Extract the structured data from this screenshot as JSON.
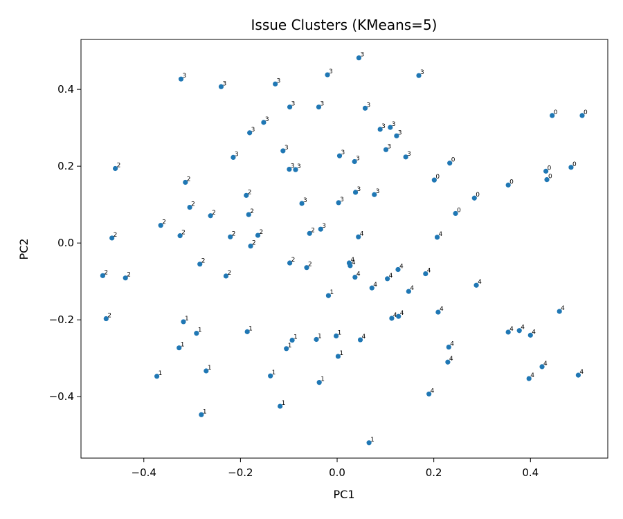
{
  "chart_data": {
    "type": "scatter",
    "title": "Issue Clusters (KMeans=5)",
    "xlabel": "PC1",
    "ylabel": "PC2",
    "xlim": [
      -0.53,
      0.56
    ],
    "ylim": [
      -0.56,
      0.53
    ],
    "grid": false,
    "point_color": "#1f77b4",
    "xticks": [
      -0.4,
      -0.2,
      0.0,
      0.2,
      0.4
    ],
    "xtick_labels": [
      "−0.4",
      "−0.2",
      "0.0",
      "0.2",
      "0.4"
    ],
    "yticks": [
      -0.4,
      -0.2,
      0.0,
      0.2,
      0.4
    ],
    "ytick_labels": [
      "−0.4",
      "−0.2",
      "0.0",
      "0.2",
      "0.4"
    ],
    "points": [
      {
        "x": 0.045,
        "y": 0.482,
        "label": "3"
      },
      {
        "x": -0.323,
        "y": 0.427,
        "label": "3"
      },
      {
        "x": -0.24,
        "y": 0.407,
        "label": "3"
      },
      {
        "x": -0.128,
        "y": 0.414,
        "label": "3"
      },
      {
        "x": -0.02,
        "y": 0.438,
        "label": "3"
      },
      {
        "x": 0.169,
        "y": 0.436,
        "label": "3"
      },
      {
        "x": -0.098,
        "y": 0.354,
        "label": "3"
      },
      {
        "x": -0.038,
        "y": 0.354,
        "label": "3"
      },
      {
        "x": 0.058,
        "y": 0.351,
        "label": "3"
      },
      {
        "x": -0.152,
        "y": 0.314,
        "label": "3"
      },
      {
        "x": -0.181,
        "y": 0.287,
        "label": "3"
      },
      {
        "x": 0.089,
        "y": 0.296,
        "label": "3"
      },
      {
        "x": 0.11,
        "y": 0.301,
        "label": "3"
      },
      {
        "x": 0.123,
        "y": 0.279,
        "label": "3"
      },
      {
        "x": -0.112,
        "y": 0.24,
        "label": "3"
      },
      {
        "x": 0.101,
        "y": 0.243,
        "label": "3"
      },
      {
        "x": 0.142,
        "y": 0.224,
        "label": "3"
      },
      {
        "x": -0.215,
        "y": 0.223,
        "label": "3"
      },
      {
        "x": 0.005,
        "y": 0.227,
        "label": "3"
      },
      {
        "x": 0.036,
        "y": 0.212,
        "label": "3"
      },
      {
        "x": -0.099,
        "y": 0.192,
        "label": "3"
      },
      {
        "x": -0.086,
        "y": 0.191,
        "label": "3"
      },
      {
        "x": 0.038,
        "y": 0.132,
        "label": "3"
      },
      {
        "x": 0.077,
        "y": 0.126,
        "label": "3"
      },
      {
        "x": -0.073,
        "y": 0.103,
        "label": "3"
      },
      {
        "x": 0.003,
        "y": 0.105,
        "label": "3"
      },
      {
        "x": -0.034,
        "y": 0.036,
        "label": "3"
      },
      {
        "x": 0.445,
        "y": 0.332,
        "label": "0"
      },
      {
        "x": 0.507,
        "y": 0.332,
        "label": "0"
      },
      {
        "x": 0.233,
        "y": 0.208,
        "label": "0"
      },
      {
        "x": 0.432,
        "y": 0.187,
        "label": "0"
      },
      {
        "x": 0.484,
        "y": 0.197,
        "label": "0"
      },
      {
        "x": 0.201,
        "y": 0.164,
        "label": "0"
      },
      {
        "x": 0.434,
        "y": 0.165,
        "label": "0"
      },
      {
        "x": 0.354,
        "y": 0.151,
        "label": "0"
      },
      {
        "x": 0.284,
        "y": 0.117,
        "label": "0"
      },
      {
        "x": 0.245,
        "y": 0.077,
        "label": "0"
      },
      {
        "x": -0.459,
        "y": 0.194,
        "label": "2"
      },
      {
        "x": -0.314,
        "y": 0.158,
        "label": "2"
      },
      {
        "x": -0.188,
        "y": 0.124,
        "label": "2"
      },
      {
        "x": -0.305,
        "y": 0.093,
        "label": "2"
      },
      {
        "x": -0.262,
        "y": 0.071,
        "label": "2"
      },
      {
        "x": -0.183,
        "y": 0.074,
        "label": "2"
      },
      {
        "x": -0.365,
        "y": 0.046,
        "label": "2"
      },
      {
        "x": -0.325,
        "y": 0.019,
        "label": "2"
      },
      {
        "x": -0.466,
        "y": 0.013,
        "label": "2"
      },
      {
        "x": -0.221,
        "y": 0.016,
        "label": "2"
      },
      {
        "x": -0.164,
        "y": 0.02,
        "label": "2"
      },
      {
        "x": -0.057,
        "y": 0.025,
        "label": "2"
      },
      {
        "x": -0.179,
        "y": -0.008,
        "label": "2"
      },
      {
        "x": -0.284,
        "y": -0.055,
        "label": "2"
      },
      {
        "x": -0.098,
        "y": -0.052,
        "label": "2"
      },
      {
        "x": -0.063,
        "y": -0.064,
        "label": "2"
      },
      {
        "x": -0.23,
        "y": -0.086,
        "label": "2"
      },
      {
        "x": -0.438,
        "y": -0.091,
        "label": "2"
      },
      {
        "x": -0.485,
        "y": -0.085,
        "label": "2"
      },
      {
        "x": -0.478,
        "y": -0.197,
        "label": "2"
      },
      {
        "x": 0.044,
        "y": 0.016,
        "label": "4"
      },
      {
        "x": 0.207,
        "y": 0.015,
        "label": "4"
      },
      {
        "x": 0.025,
        "y": -0.052,
        "label": "4"
      },
      {
        "x": 0.027,
        "y": -0.059,
        "label": "4"
      },
      {
        "x": 0.126,
        "y": -0.069,
        "label": "4"
      },
      {
        "x": 0.183,
        "y": -0.08,
        "label": "4"
      },
      {
        "x": 0.037,
        "y": -0.089,
        "label": "4"
      },
      {
        "x": 0.104,
        "y": -0.093,
        "label": "4"
      },
      {
        "x": 0.072,
        "y": -0.117,
        "label": "4"
      },
      {
        "x": 0.148,
        "y": -0.126,
        "label": "4"
      },
      {
        "x": 0.288,
        "y": -0.11,
        "label": "4"
      },
      {
        "x": 0.209,
        "y": -0.18,
        "label": "4"
      },
      {
        "x": 0.113,
        "y": -0.196,
        "label": "4"
      },
      {
        "x": 0.127,
        "y": -0.191,
        "label": "4"
      },
      {
        "x": 0.46,
        "y": -0.178,
        "label": "4"
      },
      {
        "x": 0.354,
        "y": -0.232,
        "label": "4"
      },
      {
        "x": 0.377,
        "y": -0.228,
        "label": "4"
      },
      {
        "x": 0.4,
        "y": -0.24,
        "label": "4"
      },
      {
        "x": 0.048,
        "y": -0.252,
        "label": "4"
      },
      {
        "x": 0.231,
        "y": -0.271,
        "label": "4"
      },
      {
        "x": 0.229,
        "y": -0.31,
        "label": "4"
      },
      {
        "x": 0.424,
        "y": -0.322,
        "label": "4"
      },
      {
        "x": 0.397,
        "y": -0.353,
        "label": "4"
      },
      {
        "x": 0.499,
        "y": -0.344,
        "label": "4"
      },
      {
        "x": 0.19,
        "y": -0.393,
        "label": "4"
      },
      {
        "x": -0.018,
        "y": -0.137,
        "label": "1"
      },
      {
        "x": -0.318,
        "y": -0.205,
        "label": "1"
      },
      {
        "x": -0.291,
        "y": -0.235,
        "label": "1"
      },
      {
        "x": -0.186,
        "y": -0.231,
        "label": "1"
      },
      {
        "x": -0.327,
        "y": -0.273,
        "label": "1"
      },
      {
        "x": -0.105,
        "y": -0.275,
        "label": "1"
      },
      {
        "x": -0.093,
        "y": -0.253,
        "label": "1"
      },
      {
        "x": -0.043,
        "y": -0.251,
        "label": "1"
      },
      {
        "x": -0.002,
        "y": -0.242,
        "label": "1"
      },
      {
        "x": 0.002,
        "y": -0.295,
        "label": "1"
      },
      {
        "x": -0.271,
        "y": -0.333,
        "label": "1"
      },
      {
        "x": -0.373,
        "y": -0.347,
        "label": "1"
      },
      {
        "x": -0.138,
        "y": -0.346,
        "label": "1"
      },
      {
        "x": -0.037,
        "y": -0.363,
        "label": "1"
      },
      {
        "x": -0.118,
        "y": -0.425,
        "label": "1"
      },
      {
        "x": -0.281,
        "y": -0.447,
        "label": "1"
      },
      {
        "x": 0.066,
        "y": -0.52,
        "label": "1"
      }
    ]
  }
}
